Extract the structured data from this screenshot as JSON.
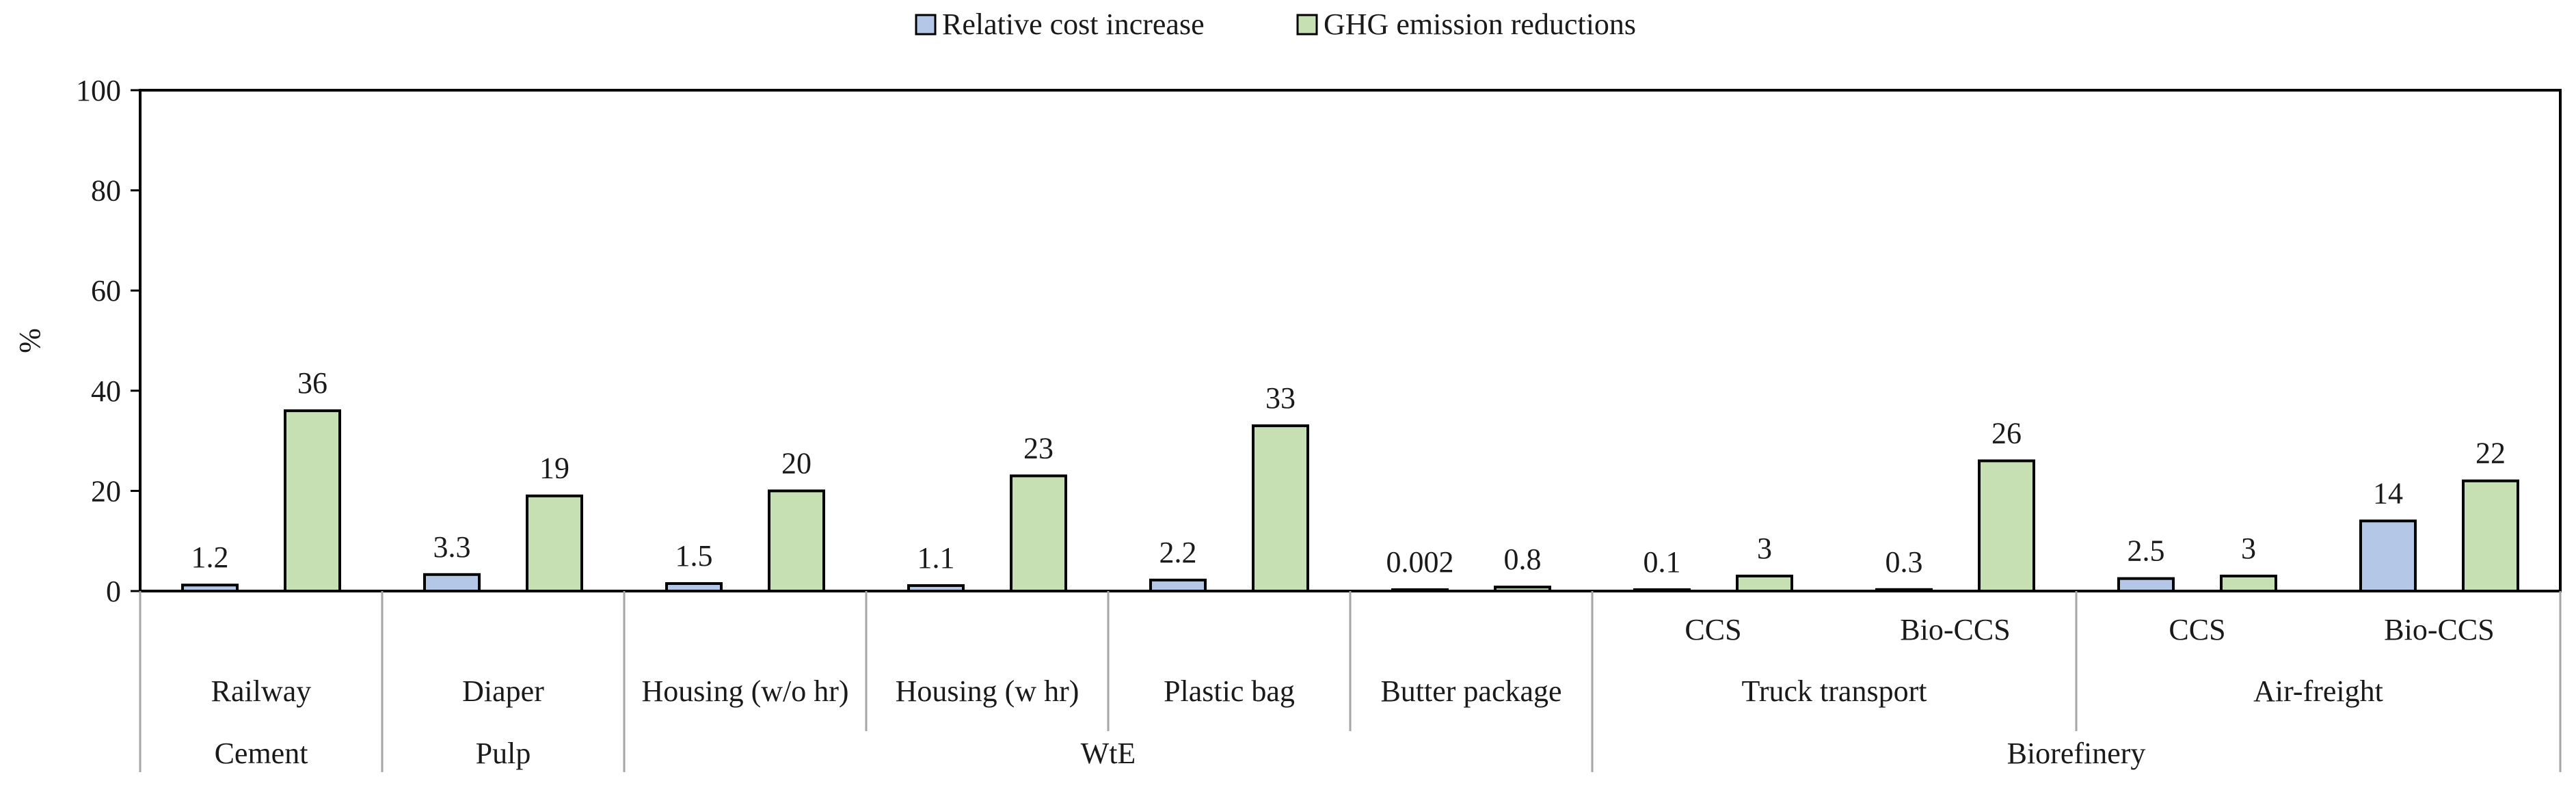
{
  "chart_data": {
    "type": "bar",
    "ylabel": "%",
    "ylim": [
      0,
      100
    ],
    "yticks": [
      0,
      20,
      40,
      60,
      80,
      100
    ],
    "grid": false,
    "legend_position": "top-center",
    "series": [
      {
        "name": "Relative cost increase",
        "color": "#b4c7e7",
        "values": [
          1.2,
          3.3,
          1.5,
          1.1,
          2.2,
          0.002,
          0.1,
          0.3,
          2.5,
          14
        ],
        "labels": [
          "1.2",
          "3.3",
          "1.5",
          "1.1",
          "2.2",
          "0.002",
          "0.1",
          "0.3",
          "2.5",
          "14"
        ]
      },
      {
        "name": "GHG emission reductions",
        "color": "#c6e0b4",
        "values": [
          36,
          19,
          20,
          23,
          33,
          0.8,
          3,
          26,
          3,
          22
        ],
        "labels": [
          "36",
          "19",
          "20",
          "23",
          "33",
          "0.8",
          "3",
          "26",
          "3",
          "22"
        ]
      }
    ],
    "categories": [
      {
        "level1": "",
        "level2": "Railway",
        "level3": "Cement"
      },
      {
        "level1": "",
        "level2": "Diaper",
        "level3": "Pulp"
      },
      {
        "level1": "",
        "level2": "Housing (w/o hr)",
        "level3": "WtE"
      },
      {
        "level1": "",
        "level2": "Housing (w hr)",
        "level3": "WtE"
      },
      {
        "level1": "",
        "level2": "Plastic bag",
        "level3": "WtE"
      },
      {
        "level1": "",
        "level2": "Butter package",
        "level3": "WtE"
      },
      {
        "level1": "CCS",
        "level2": "Truck transport",
        "level3": "Biorefinery"
      },
      {
        "level1": "Bio-CCS",
        "level2": "Truck transport",
        "level3": "Biorefinery"
      },
      {
        "level1": "CCS",
        "level2": "Air-freight",
        "level3": "Biorefinery"
      },
      {
        "level1": "Bio-CCS",
        "level2": "Air-freight",
        "level3": "Biorefinery"
      }
    ],
    "level2_groups": [
      {
        "label": "Railway",
        "span": 1
      },
      {
        "label": "Diaper",
        "span": 1
      },
      {
        "label": "Housing (w/o hr)",
        "span": 1
      },
      {
        "label": "Housing (w hr)",
        "span": 1
      },
      {
        "label": "Plastic bag",
        "span": 1
      },
      {
        "label": "Butter package",
        "span": 1
      },
      {
        "label": "Truck transport",
        "span": 2
      },
      {
        "label": "Air-freight",
        "span": 2
      }
    ],
    "level3_groups": [
      {
        "label": "Cement",
        "span": 1
      },
      {
        "label": "Pulp",
        "span": 1
      },
      {
        "label": "WtE",
        "span": 4
      },
      {
        "label": "Biorefinery",
        "span": 4
      }
    ]
  }
}
